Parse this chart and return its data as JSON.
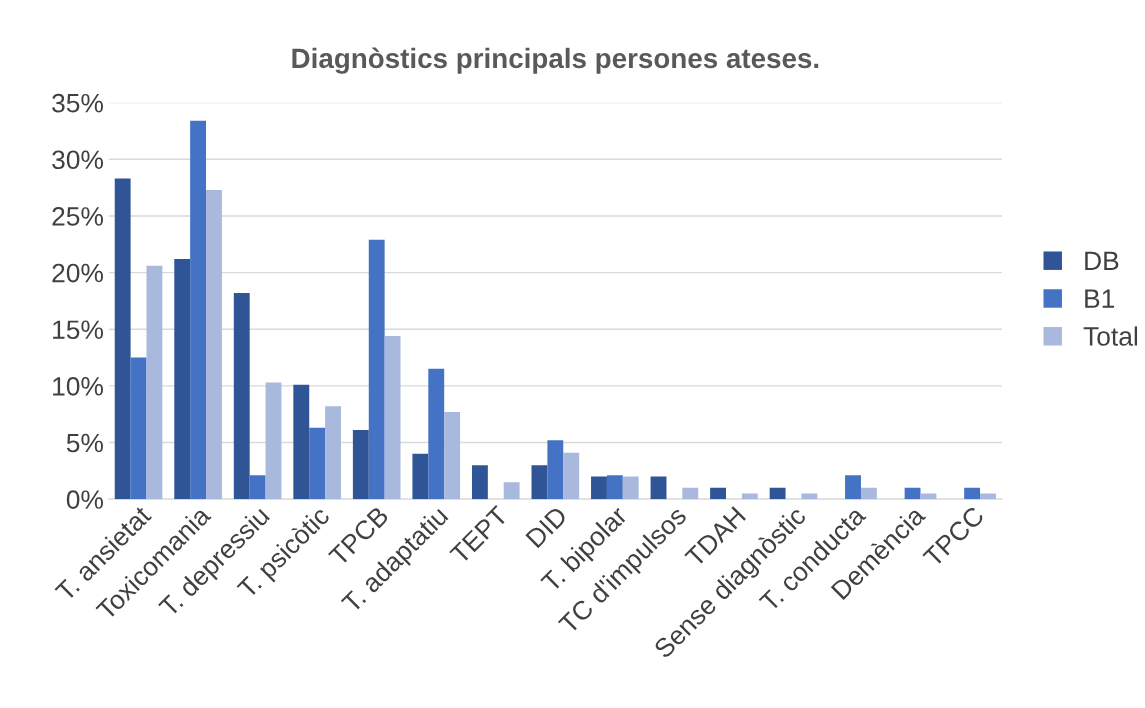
{
  "chart_data": {
    "type": "bar",
    "title": "Diagnòstics principals persones ateses.",
    "categories": [
      "T. ansietat",
      "Toxicomania",
      "T. depressiu",
      "T. psicòtic",
      "TPCB",
      "T. adaptatiu",
      "TEPT",
      "DID",
      "T. bipolar",
      "TC d'impulsos",
      "TDAH",
      "Sense diagnòstic",
      "T. conducta",
      "Demència",
      "TPCC"
    ],
    "series": [
      {
        "name": "DB",
        "color": "#2f5597",
        "values": [
          28.3,
          21.2,
          18.2,
          10.1,
          6.1,
          4.0,
          3.0,
          3.0,
          2.0,
          2.0,
          1.0,
          1.0,
          0,
          0,
          0
        ]
      },
      {
        "name": "B1",
        "color": "#4472c4",
        "values": [
          12.5,
          33.4,
          2.1,
          6.3,
          22.9,
          11.5,
          0,
          5.2,
          2.1,
          0,
          0,
          0,
          2.1,
          1.0,
          1.0
        ]
      },
      {
        "name": "Total",
        "color": "#a9b8dd",
        "values": [
          20.6,
          27.3,
          10.3,
          8.2,
          14.4,
          7.7,
          1.5,
          4.1,
          2.0,
          1.0,
          0.5,
          0.5,
          1.0,
          0.5,
          0.5
        ]
      }
    ],
    "ylim": [
      0,
      35
    ],
    "yticks": [
      {
        "value": 0,
        "label": "0%"
      },
      {
        "value": 5,
        "label": "5%"
      },
      {
        "value": 10,
        "label": "10%"
      },
      {
        "value": 15,
        "label": "15%"
      },
      {
        "value": 20,
        "label": "20%"
      },
      {
        "value": 25,
        "label": "25%"
      },
      {
        "value": 30,
        "label": "30%"
      },
      {
        "value": 35,
        "label": "35%"
      }
    ],
    "grid": "y",
    "legend": "right"
  }
}
